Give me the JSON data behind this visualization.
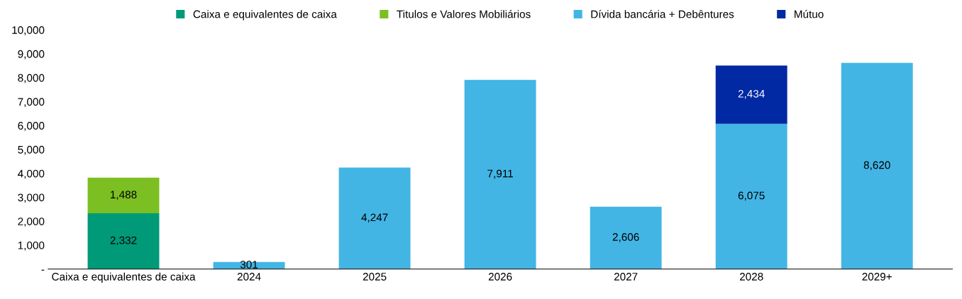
{
  "chart_data": {
    "type": "bar",
    "stacked": true,
    "legend": "top",
    "grid": false,
    "categories": [
      "Caixa e equivalentes de caixa",
      "2024",
      "2025",
      "2026",
      "2027",
      "2028",
      "2029+"
    ],
    "ylim": [
      0,
      10000
    ],
    "yticks": [
      {
        "value": 0,
        "label": "-"
      },
      {
        "value": 1000,
        "label": "1,000"
      },
      {
        "value": 2000,
        "label": "2,000"
      },
      {
        "value": 3000,
        "label": "3,000"
      },
      {
        "value": 4000,
        "label": "4,000"
      },
      {
        "value": 5000,
        "label": "5,000"
      },
      {
        "value": 6000,
        "label": "6,000"
      },
      {
        "value": 7000,
        "label": "7,000"
      },
      {
        "value": 8000,
        "label": "8,000"
      },
      {
        "value": 9000,
        "label": "9,000"
      },
      {
        "value": 10000,
        "label": "10,000"
      }
    ],
    "series": [
      {
        "name": "Caixa e equivalentes de caixa",
        "color": "#009a78",
        "values": [
          2332,
          null,
          null,
          null,
          null,
          null,
          null
        ],
        "value_labels": [
          "2,332",
          null,
          null,
          null,
          null,
          null,
          null
        ]
      },
      {
        "name": "Titulos e Valores Mobiliários",
        "color": "#7cbf22",
        "values": [
          1488,
          null,
          null,
          null,
          null,
          null,
          null
        ],
        "value_labels": [
          "1,488",
          null,
          null,
          null,
          null,
          null,
          null
        ]
      },
      {
        "name": "Dívida bancária + Debêntures",
        "color": "#42b5e5",
        "values": [
          null,
          301,
          4247,
          7911,
          2606,
          6075,
          8620
        ],
        "value_labels": [
          null,
          "301",
          "4,247",
          "7,911",
          "2,606",
          "6,075",
          "8,620"
        ]
      },
      {
        "name": "Mútuo",
        "color": "#0029a3",
        "values": [
          null,
          null,
          null,
          null,
          null,
          2434,
          null
        ],
        "value_labels": [
          null,
          null,
          null,
          null,
          null,
          "2,434",
          null
        ]
      }
    ]
  }
}
